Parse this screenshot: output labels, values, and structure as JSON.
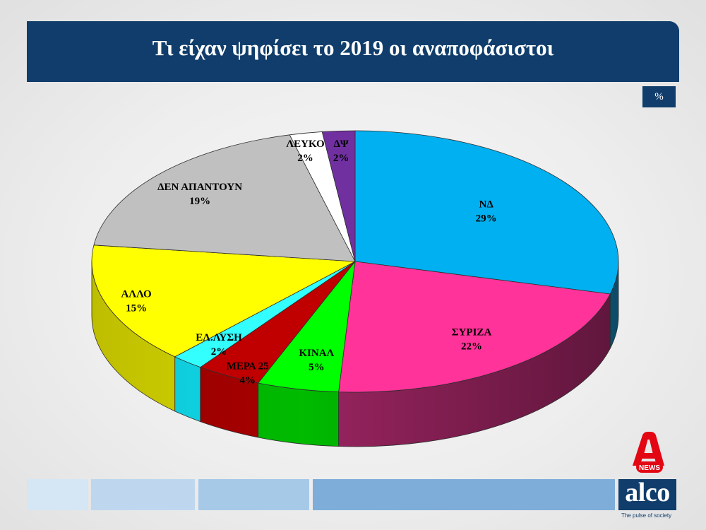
{
  "branding": {
    "brand_navy": "#103d6b",
    "footer_colors": [
      "#d5e6f5",
      "#bed7ee",
      "#a7c9e8",
      "#7eadda"
    ],
    "alpha_logo": {
      "icon": "alpha-logo-icon",
      "badge_text": "NEWS",
      "color": "#e30613"
    },
    "alco_logo": {
      "text": "alco",
      "tagline": "The pulse of society"
    }
  },
  "chart_data": {
    "type": "pie",
    "three_d": true,
    "title": "Τι είχαν ψηφίσει το 2019 οι αναποφάσιστοι",
    "unit": "%",
    "categories": [
      "ΝΔ",
      "ΣΥΡΙΖΑ",
      "ΚΙΝΑΛ",
      "ΜΕΡΑ 25",
      "ΕΛ.ΛΥΣΗ",
      "ΑΛΛΟ",
      "ΔΕΝ ΑΠΑΝΤΟΥΝ",
      "ΛΕΥΚΟ",
      "ΔΨ"
    ],
    "values": [
      29,
      22,
      5,
      4,
      2,
      15,
      19,
      2,
      2
    ],
    "value_labels": [
      "29%",
      "22%",
      "5%",
      "4%",
      "2%",
      "15%",
      "19%",
      "2%",
      "2%"
    ],
    "colors": [
      "#00b0f0",
      "#ff3399",
      "#00ff00",
      "#c00000",
      "#33ffff",
      "#ffff00",
      "#c0c0c0",
      "#ffffff",
      "#7030a0"
    ],
    "side_colors": [
      "#137aa8",
      "#9a2460",
      "#00bb00",
      "#a80000",
      "#10dcec",
      "#d8d800",
      null,
      null,
      null
    ]
  }
}
